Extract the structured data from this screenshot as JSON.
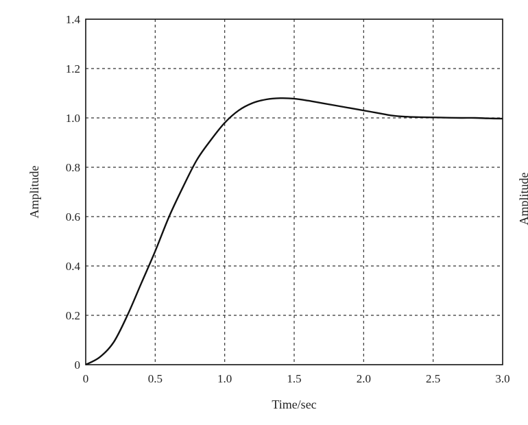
{
  "chart_data": {
    "type": "line",
    "title": "",
    "xlabel": "Time/sec",
    "ylabel": "Amplitude",
    "xlim": [
      0,
      3.0
    ],
    "ylim": [
      0,
      1.4
    ],
    "grid": true,
    "grid_style": "dashed",
    "x_ticks": [
      0,
      0.5,
      1.0,
      1.5,
      2.0,
      2.5,
      3.0
    ],
    "x_tick_labels": [
      "0",
      "0.5",
      "1.0",
      "1.5",
      "2.0",
      "2.5",
      "3.0"
    ],
    "y_ticks": [
      0,
      0.2,
      0.4,
      0.6,
      0.8,
      1.0,
      1.2,
      1.4
    ],
    "y_tick_labels": [
      "0",
      "0.2",
      "0.4",
      "0.6",
      "0.8",
      "1.0",
      "1.2",
      "1.4"
    ],
    "partial_neighbor_label": "Amplitude",
    "series": [
      {
        "color": "#111111",
        "x": [
          0,
          0.1,
          0.2,
          0.3,
          0.4,
          0.5,
          0.6,
          0.7,
          0.8,
          0.9,
          1.0,
          1.1,
          1.2,
          1.3,
          1.4,
          1.5,
          1.6,
          1.7,
          1.8,
          1.9,
          2.0,
          2.1,
          2.2,
          2.3,
          2.4,
          2.5,
          2.6,
          2.7,
          2.8,
          2.9,
          3.0
        ],
        "y": [
          0,
          0.03,
          0.09,
          0.2,
          0.33,
          0.46,
          0.6,
          0.72,
          0.83,
          0.91,
          0.98,
          1.03,
          1.06,
          1.075,
          1.08,
          1.078,
          1.07,
          1.06,
          1.05,
          1.04,
          1.03,
          1.02,
          1.01,
          1.005,
          1.003,
          1.002,
          1.001,
          1.0,
          1.0,
          0.998,
          0.997
        ]
      }
    ]
  }
}
